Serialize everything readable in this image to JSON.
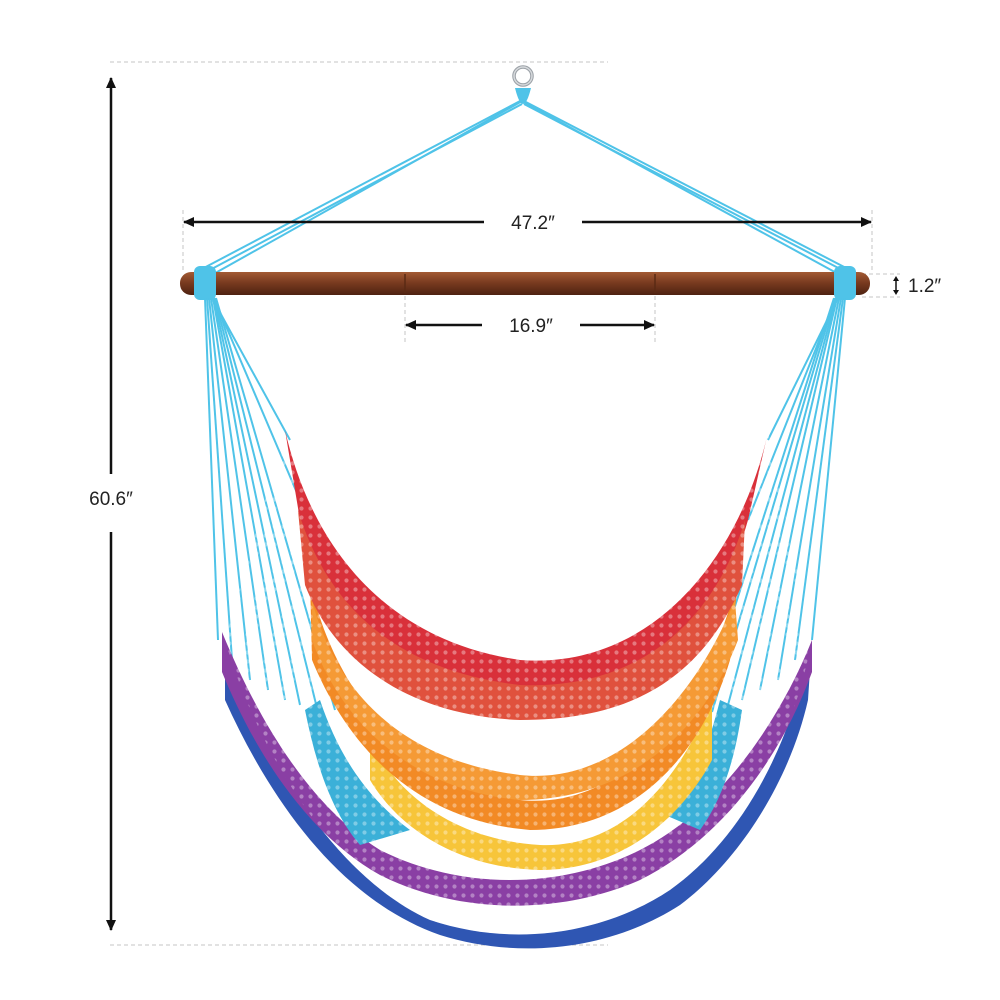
{
  "product": "rainbow hanging hammock chair with wooden spreader bar",
  "dimensions": {
    "overall_height": "60.6″",
    "spreader_width": "47.2″",
    "bar_diameter": "1.2″",
    "center_section": "16.9″"
  },
  "colors": {
    "ropes": "#4fc3e8",
    "bar": "#7a3b20",
    "band_red": "#d9303a",
    "band_orange": "#f28a25",
    "band_yellow": "#f7c53a",
    "band_purple": "#8a3fa4",
    "band_blue": "#2f56b3",
    "dimension_line": "#111111",
    "guide_line": "#bdbdbd"
  }
}
